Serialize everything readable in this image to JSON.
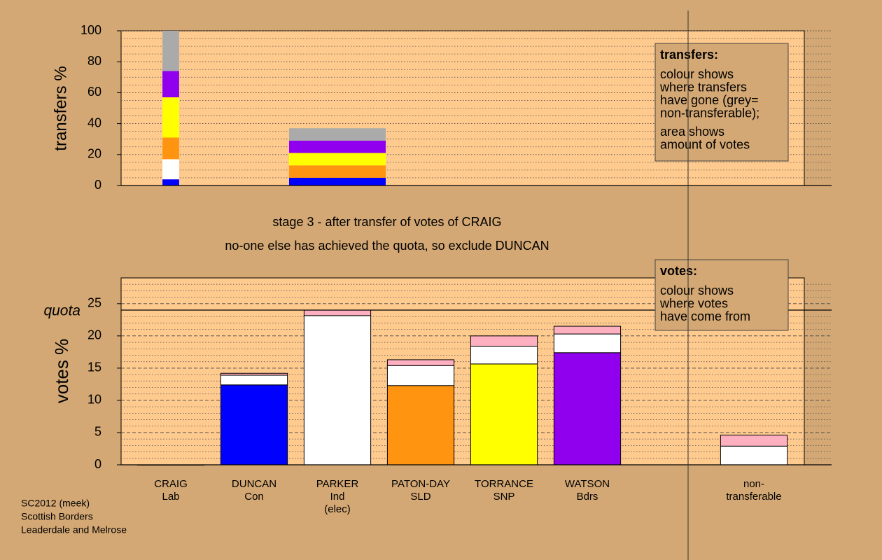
{
  "chart_data": [
    {
      "type": "bar",
      "stacked": true,
      "ylabel": "transfers %",
      "ylim": [
        0,
        100
      ],
      "yticks": [
        0,
        20,
        40,
        60,
        80,
        100
      ],
      "yminorticks": [
        5,
        10,
        15,
        25,
        30,
        35,
        45,
        50,
        55,
        65,
        70,
        75,
        85,
        90,
        95
      ],
      "categories": [
        null,
        null,
        null,
        null,
        null,
        null,
        null,
        null
      ],
      "widths": [
        0.2,
        null,
        1.16,
        null,
        null,
        null,
        null,
        null
      ],
      "series": [
        {
          "color": "#0000ff",
          "values": [
            4,
            null,
            5,
            null,
            null,
            null,
            null,
            null
          ]
        },
        {
          "color": "#ffffff",
          "values": [
            13,
            null,
            null,
            null,
            null,
            null,
            null,
            null
          ]
        },
        {
          "color": "#ff9410",
          "values": [
            14,
            null,
            8,
            null,
            null,
            null,
            null,
            null
          ]
        },
        {
          "color": "#ffff00",
          "values": [
            26,
            null,
            8,
            null,
            null,
            null,
            null,
            null
          ]
        },
        {
          "color": "#9000ee",
          "values": [
            17,
            null,
            8,
            null,
            null,
            null,
            null,
            null
          ]
        },
        {
          "color": "#aaaaaa",
          "values": [
            26,
            null,
            8,
            null,
            null,
            null,
            null,
            null
          ]
        }
      ],
      "legend_box": {
        "title": "transfers:",
        "lines": [
          "colour shows",
          "where transfers",
          "have gone (grey=",
          "non-transferable);",
          "area shows",
          "amount of votes"
        ]
      }
    },
    {
      "type": "bar",
      "stacked": true,
      "ylabel": "votes %",
      "ylim": [
        0,
        29
      ],
      "yticks": [
        0,
        5,
        10,
        15,
        20,
        25
      ],
      "yminorticks": [
        1,
        2,
        3,
        4,
        6,
        7,
        8,
        9,
        11,
        12,
        13,
        14,
        16,
        17,
        18,
        19,
        21,
        22,
        23,
        24,
        26,
        27,
        28
      ],
      "quota": {
        "label": "quota",
        "value": 24
      },
      "categories": [
        [
          "CRAIG",
          "Lab"
        ],
        [
          "DUNCAN",
          "Con"
        ],
        [
          "PARKER",
          "Ind",
          "(elec)"
        ],
        [
          "PATON-DAY",
          "SLD"
        ],
        [
          "TORRANCE",
          "SNP"
        ],
        [
          "WATSON",
          "Bdrs"
        ],
        null,
        [
          "non-",
          "transferable"
        ]
      ],
      "series": [
        {
          "colors": [
            "#000000",
            "#0000ff",
            "#ffffff",
            "#ff9410",
            "#ffff00",
            "#9000ee",
            null,
            null
          ],
          "values": [
            0,
            12.4,
            23.15,
            12.3,
            15.65,
            17.4,
            null,
            null
          ]
        },
        {
          "color": "#ffffff",
          "values": [
            null,
            1.5,
            null,
            3.1,
            2.75,
            2.9,
            null,
            2.9
          ]
        },
        {
          "color": "#ffb0c0",
          "values": [
            null,
            0.3,
            0.85,
            0.9,
            1.6,
            1.2,
            null,
            1.7
          ]
        }
      ],
      "legend_box": {
        "title": "votes:",
        "lines": [
          "colour shows",
          "where votes",
          "have come from"
        ]
      }
    }
  ],
  "annotations": [
    "stage 3 - after transfer of votes of CRAIG",
    "no-one else has achieved the quota, so exclude DUNCAN"
  ],
  "footer": [
    "SC2012 (meek)",
    "Scottish Borders",
    "Leaderdale and Melrose"
  ]
}
